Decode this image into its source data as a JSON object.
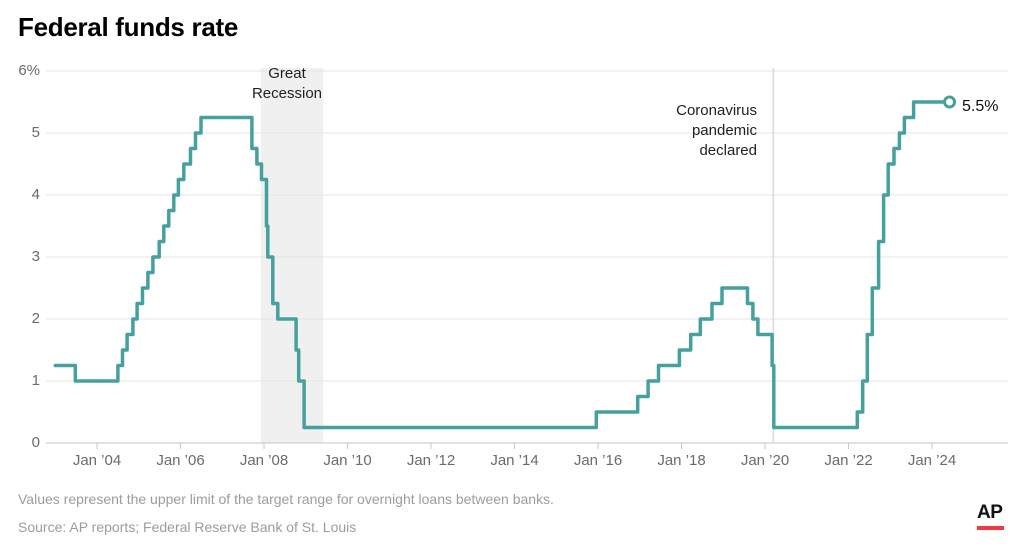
{
  "title": "Federal funds rate",
  "annotations": {
    "recession": {
      "line1": "Great",
      "line2": "Recession"
    },
    "pandemic": {
      "line1": "Coronavirus",
      "line2": "pandemic",
      "line3": "declared"
    },
    "end_label": "5.5%"
  },
  "footer": {
    "note": "Values represent the upper limit of the target range for overnight loans between banks.",
    "source": "Source: AP reports; Federal Reserve Bank of St. Louis"
  },
  "logo": {
    "text": "AP"
  },
  "colors": {
    "line": "#46a19e",
    "band": "#f0f0f0",
    "grid": "#e4e4e4",
    "axis": "#c6c6c6",
    "event_line": "#dadada",
    "marker_fill": "#ffffff",
    "ap_red": "#ef3a41"
  },
  "chart_data": {
    "type": "line",
    "title": "Federal funds rate",
    "ylabel": "%",
    "ylim": [
      0,
      6
    ],
    "grid": "horizontal only",
    "legend": "none",
    "yticks": [
      {
        "v": 6,
        "label": "6%"
      },
      {
        "v": 5,
        "label": "5"
      },
      {
        "v": 4,
        "label": "4"
      },
      {
        "v": 3,
        "label": "3"
      },
      {
        "v": 2,
        "label": "2"
      },
      {
        "v": 1,
        "label": "1"
      },
      {
        "v": 0,
        "label": "0"
      }
    ],
    "xticks": [
      {
        "year": 2004,
        "label": "Jan ’04"
      },
      {
        "year": 2006,
        "label": "Jan ’06"
      },
      {
        "year": 2008,
        "label": "Jan ’08"
      },
      {
        "year": 2010,
        "label": "Jan ’10"
      },
      {
        "year": 2012,
        "label": "Jan ’12"
      },
      {
        "year": 2014,
        "label": "Jan ’14"
      },
      {
        "year": 2016,
        "label": "Jan ’16"
      },
      {
        "year": 2018,
        "label": "Jan ’18"
      },
      {
        "year": 2020,
        "label": "Jan ’20"
      },
      {
        "year": 2022,
        "label": "Jan ’22"
      },
      {
        "year": 2024,
        "label": "Jan ’24"
      }
    ],
    "shaded_region": {
      "label": "Great Recession",
      "x_start": 2007.92,
      "x_end": 2009.42
    },
    "event_line": {
      "label": "Coronavirus pandemic declared",
      "x": 2020.2
    },
    "end_marker": {
      "x": 2024.42,
      "y": 5.5,
      "label": "5.5%"
    },
    "series": [
      {
        "name": "Federal funds rate (upper limit of target range, %)",
        "interpolation": "step-after",
        "points": [
          [
            2003.0,
            1.25
          ],
          [
            2003.48,
            1.0
          ],
          [
            2004.5,
            1.25
          ],
          [
            2004.61,
            1.5
          ],
          [
            2004.72,
            1.75
          ],
          [
            2004.86,
            2.0
          ],
          [
            2004.96,
            2.25
          ],
          [
            2005.09,
            2.5
          ],
          [
            2005.22,
            2.75
          ],
          [
            2005.34,
            3.0
          ],
          [
            2005.49,
            3.25
          ],
          [
            2005.6,
            3.5
          ],
          [
            2005.72,
            3.75
          ],
          [
            2005.84,
            4.0
          ],
          [
            2005.95,
            4.25
          ],
          [
            2006.08,
            4.5
          ],
          [
            2006.24,
            4.75
          ],
          [
            2006.36,
            5.0
          ],
          [
            2006.49,
            5.25
          ],
          [
            2007.71,
            4.75
          ],
          [
            2007.83,
            4.5
          ],
          [
            2007.94,
            4.25
          ],
          [
            2008.06,
            3.5
          ],
          [
            2008.09,
            3.0
          ],
          [
            2008.21,
            2.25
          ],
          [
            2008.33,
            2.0
          ],
          [
            2008.77,
            1.5
          ],
          [
            2008.83,
            1.0
          ],
          [
            2008.96,
            0.25
          ],
          [
            2015.96,
            0.5
          ],
          [
            2016.95,
            0.75
          ],
          [
            2017.2,
            1.0
          ],
          [
            2017.45,
            1.25
          ],
          [
            2017.95,
            1.5
          ],
          [
            2018.22,
            1.75
          ],
          [
            2018.45,
            2.0
          ],
          [
            2018.73,
            2.25
          ],
          [
            2018.97,
            2.5
          ],
          [
            2019.58,
            2.25
          ],
          [
            2019.71,
            2.0
          ],
          [
            2019.83,
            1.75
          ],
          [
            2020.17,
            1.25
          ],
          [
            2020.21,
            0.25
          ],
          [
            2022.21,
            0.5
          ],
          [
            2022.34,
            1.0
          ],
          [
            2022.45,
            1.75
          ],
          [
            2022.57,
            2.5
          ],
          [
            2022.72,
            3.25
          ],
          [
            2022.84,
            4.0
          ],
          [
            2022.95,
            4.5
          ],
          [
            2023.09,
            4.75
          ],
          [
            2023.22,
            5.0
          ],
          [
            2023.34,
            5.25
          ],
          [
            2023.56,
            5.5
          ],
          [
            2024.42,
            5.5
          ]
        ]
      }
    ]
  }
}
